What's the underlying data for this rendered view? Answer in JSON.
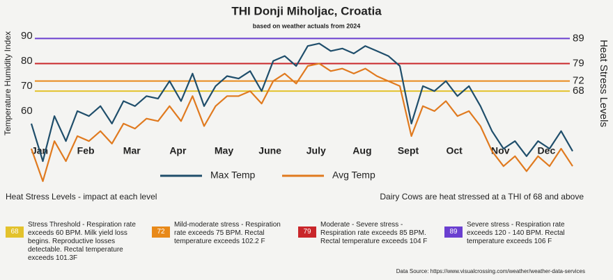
{
  "chart_data": {
    "type": "line",
    "title": "THI Donji Miholjac, Croatia",
    "subtitle": "based on weather actuals from 2024",
    "y_label": "Temperature Humidity Index",
    "y2_label": "Heat Stress Levels",
    "categories": [
      "Jan",
      null,
      null,
      null,
      "Feb",
      null,
      null,
      null,
      "Mar",
      null,
      null,
      null,
      "Apr",
      null,
      null,
      null,
      "May",
      null,
      null,
      null,
      "June",
      null,
      null,
      null,
      "July",
      null,
      null,
      null,
      "Aug",
      null,
      null,
      null,
      "Sept",
      null,
      null,
      null,
      "Oct",
      null,
      null,
      null,
      "Nov",
      null,
      null,
      null,
      "Dec",
      null,
      null,
      null
    ],
    "series": [
      {
        "name": "Max Temp",
        "color": "#1f4e6b",
        "values": [
          55,
          40,
          58,
          48,
          60,
          58,
          62,
          55,
          64,
          62,
          66,
          65,
          72,
          64,
          75,
          62,
          70,
          74,
          73,
          76,
          68,
          80,
          82,
          78,
          86,
          87,
          84,
          85,
          83,
          86,
          84,
          82,
          78,
          55,
          70,
          68,
          72,
          66,
          70,
          62,
          52,
          45,
          48,
          42,
          48,
          45,
          52,
          44
        ]
      },
      {
        "name": "Avg Temp",
        "color": "#e07a1f",
        "values": [
          45,
          32,
          48,
          40,
          50,
          48,
          52,
          47,
          55,
          53,
          57,
          56,
          62,
          56,
          66,
          54,
          62,
          66,
          66,
          68,
          63,
          72,
          75,
          71,
          78,
          79,
          76,
          77,
          75,
          77,
          74,
          72,
          70,
          50,
          62,
          60,
          64,
          58,
          60,
          54,
          44,
          38,
          42,
          36,
          42,
          38,
          45,
          38
        ]
      }
    ],
    "ylim": [
      30,
      93
    ],
    "yticks": [
      60,
      70,
      80,
      90
    ],
    "thresholds": [
      {
        "value": 68,
        "color": "#e3c22c",
        "description": "Stress Threshold - Respiration rate exceeds 60 BPM. Milk yield loss begins. Reproductive losses detectable. Rectal temperature exceeds 101.3F"
      },
      {
        "value": 72,
        "color": "#e8891a",
        "description": "Mild-moderate stress - Respiration rate exceeds 75 BPM. Rectal temperature exceeds 102.2 F"
      },
      {
        "value": 79,
        "color": "#c9262a",
        "description": "Moderate - Severe stress - Respiration rate exceeds 85 BPM. Rectal temperature exceeds 104 F"
      },
      {
        "value": 89,
        "color": "#6a3fd0",
        "description": "Severe stress - Respiration rate exceeds 120 - 140 BPM. Rectal temperature exceeds 106 F"
      }
    ],
    "impact_heading": "Heat Stress Levels - impact at each level",
    "note": "Dairy Cows are heat stressed at a THI of 68 and above",
    "source": "Data Source: https://www.visualcrossing.com/weather/weather-data-services"
  }
}
